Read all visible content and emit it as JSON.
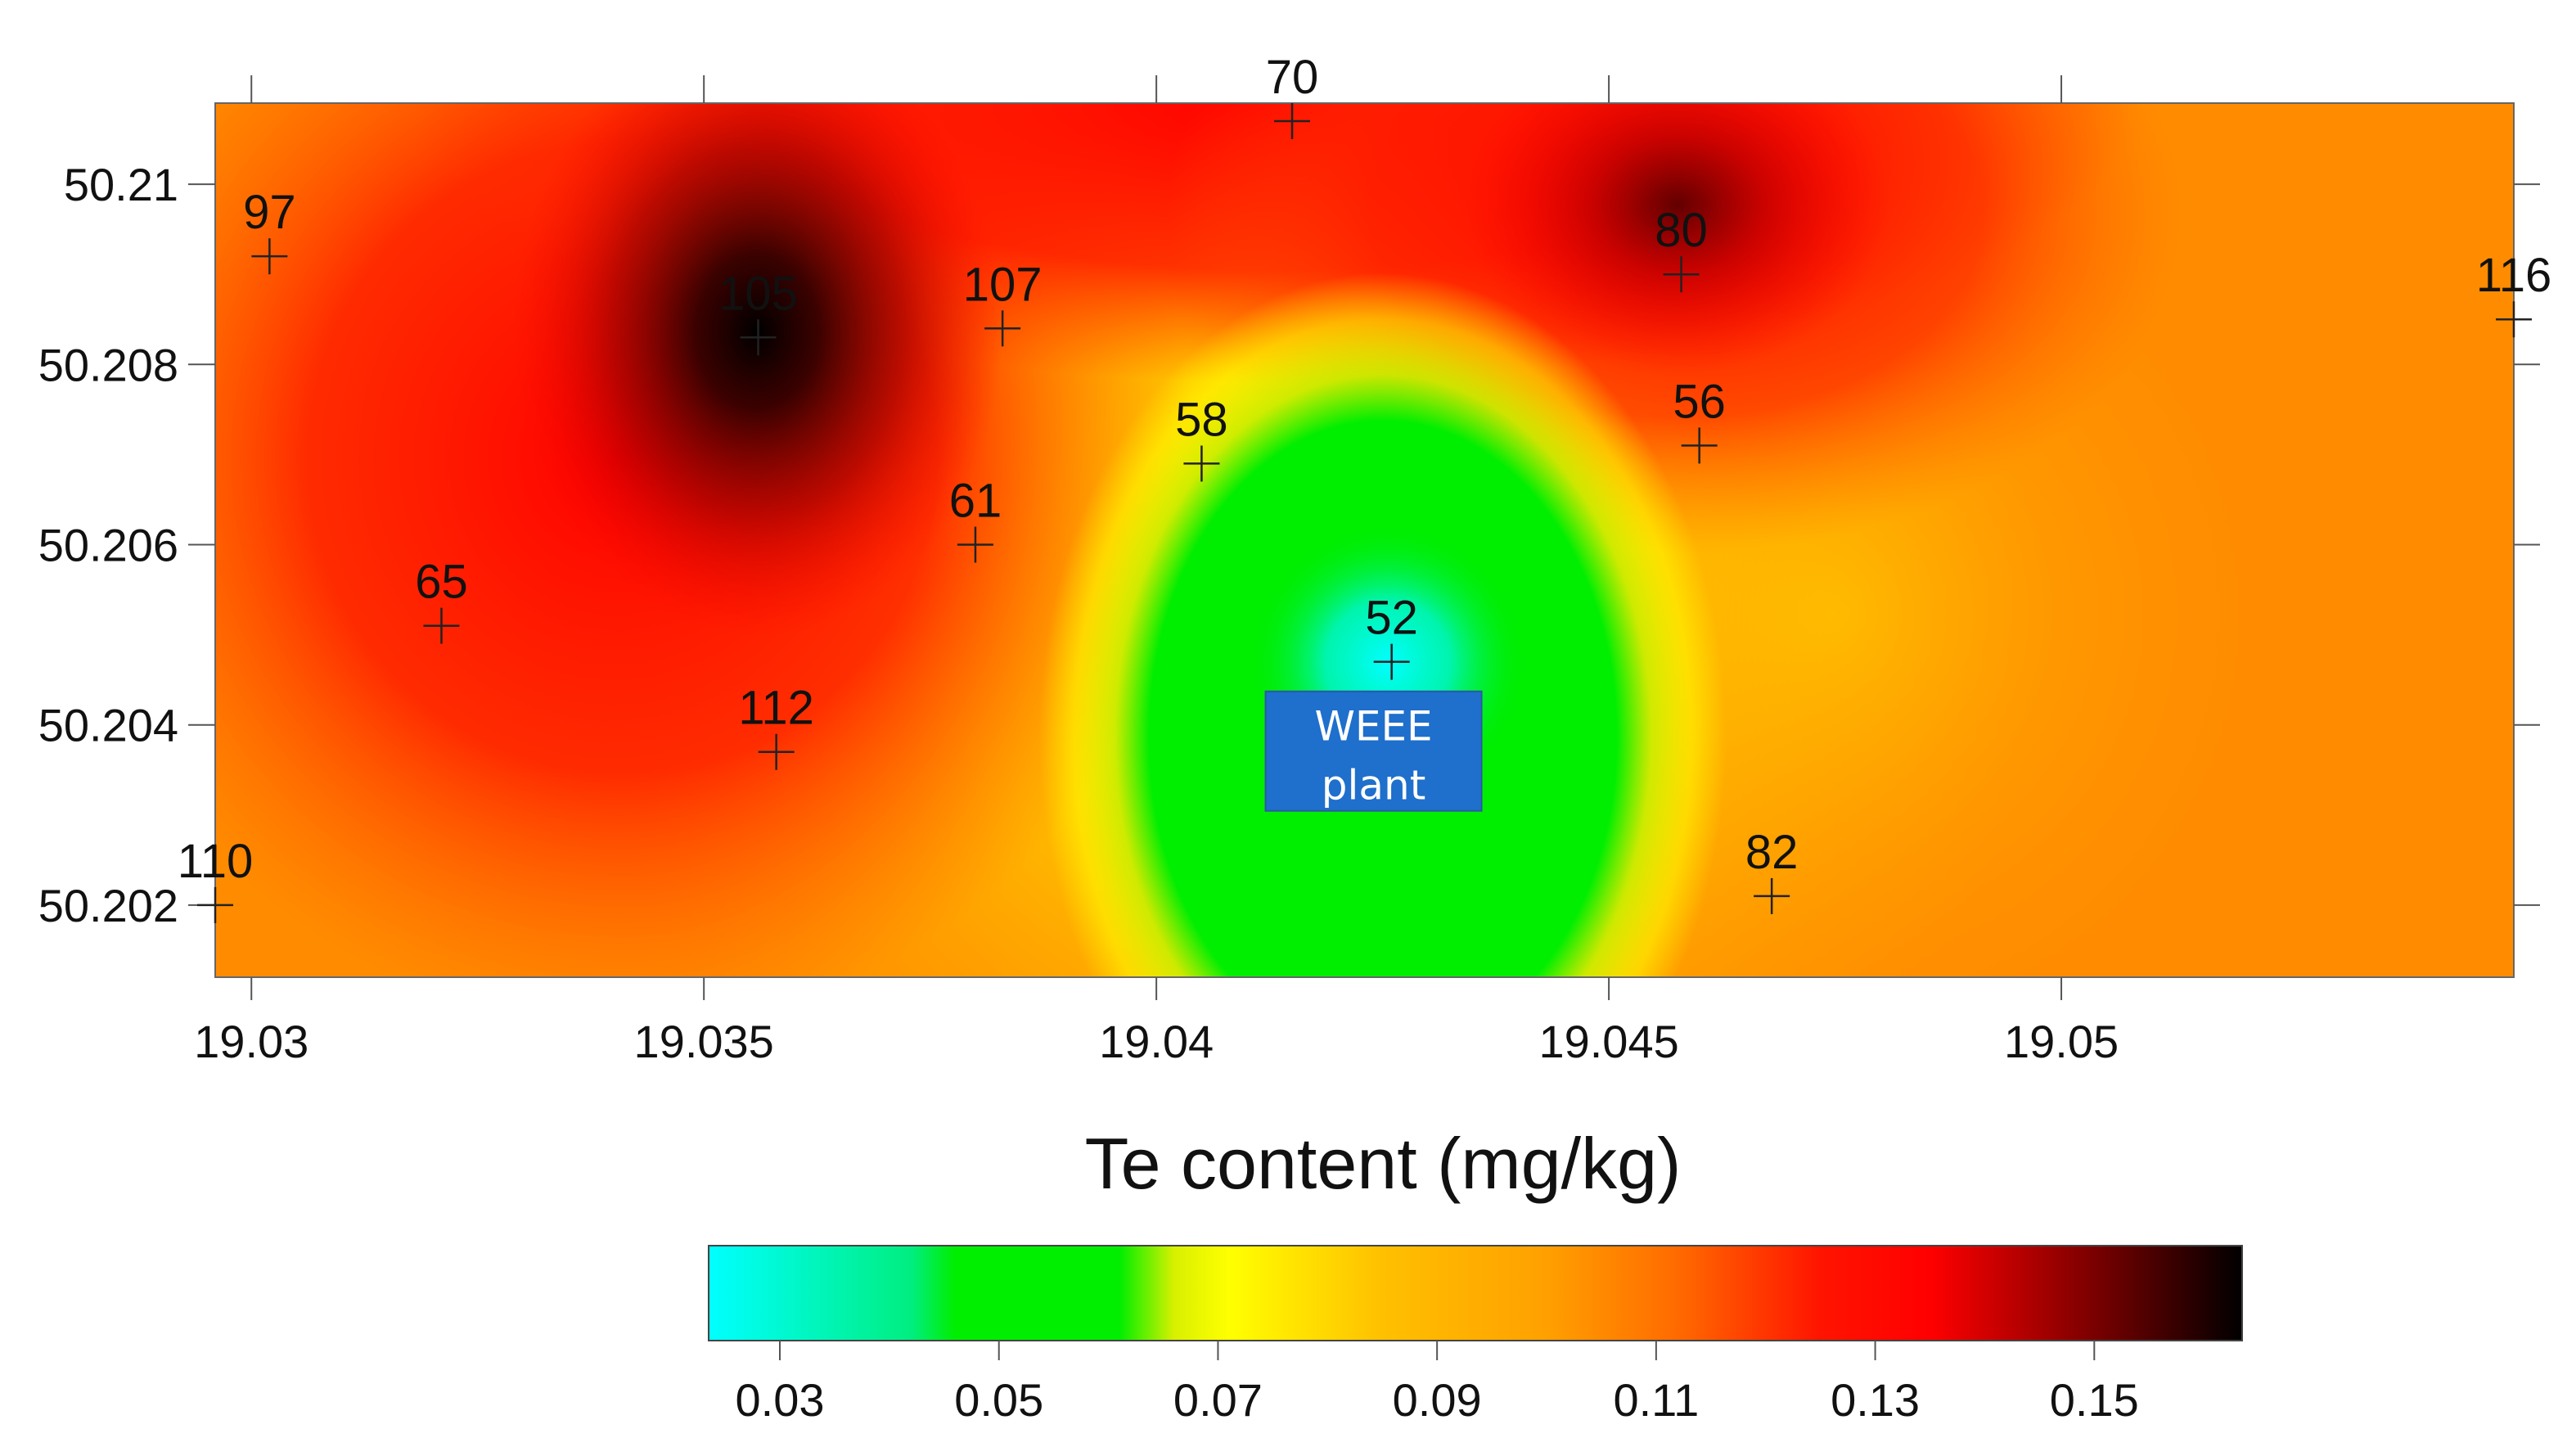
{
  "chart_data": {
    "type": "heatmap",
    "x_axis": {
      "ticks": [
        19.03,
        19.035,
        19.04,
        19.045,
        19.05
      ],
      "tick_labels": [
        "19.03",
        "19.035",
        "19.04",
        "19.045",
        "19.05"
      ],
      "range": [
        19.0296,
        19.055
      ]
    },
    "y_axis": {
      "ticks": [
        50.202,
        50.204,
        50.206,
        50.208,
        50.21
      ],
      "tick_labels": [
        "50.202",
        "50.204",
        "50.206",
        "50.208",
        "50.21"
      ],
      "range": [
        50.2012,
        50.2109
      ]
    },
    "sample_points": [
      {
        "label": "97",
        "x": 19.0302,
        "y": 50.2092
      },
      {
        "label": "70",
        "x": 19.0415,
        "y": 50.2107
      },
      {
        "label": "105",
        "x": 19.0356,
        "y": 50.2083
      },
      {
        "label": "107",
        "x": 19.0383,
        "y": 50.2084
      },
      {
        "label": "80",
        "x": 19.0458,
        "y": 50.209
      },
      {
        "label": "116",
        "x": 19.055,
        "y": 50.2085
      },
      {
        "label": "58",
        "x": 19.0405,
        "y": 50.2069
      },
      {
        "label": "56",
        "x": 19.046,
        "y": 50.2071
      },
      {
        "label": "61",
        "x": 19.038,
        "y": 50.206
      },
      {
        "label": "65",
        "x": 19.0321,
        "y": 50.2051
      },
      {
        "label": "52",
        "x": 19.0426,
        "y": 50.2047
      },
      {
        "label": "112",
        "x": 19.0358,
        "y": 50.2037
      },
      {
        "label": "82",
        "x": 19.0468,
        "y": 50.2021
      },
      {
        "label": "110",
        "x": 19.0296,
        "y": 50.202
      }
    ],
    "annotation": {
      "line1": "WEEE",
      "line2": "plant",
      "x": 19.0424,
      "y": 50.2037,
      "color": "#1f6fcc"
    },
    "colorbar": {
      "title": "Te content (mg/kg)",
      "ticks": [
        0.03,
        0.05,
        0.07,
        0.09,
        0.11,
        0.13,
        0.15
      ],
      "tick_labels": [
        "0.03",
        "0.05",
        "0.07",
        "0.09",
        "0.11",
        "0.13",
        "0.15"
      ],
      "range": [
        0.0235,
        0.1635
      ],
      "stops": [
        {
          "value": 0.0235,
          "color": "#00ffff"
        },
        {
          "value": 0.042,
          "color": "#00ee80"
        },
        {
          "value": 0.046,
          "color": "#00ee00"
        },
        {
          "value": 0.061,
          "color": "#00ee00"
        },
        {
          "value": 0.066,
          "color": "#d8f000"
        },
        {
          "value": 0.071,
          "color": "#ffff00"
        },
        {
          "value": 0.085,
          "color": "#ffc000"
        },
        {
          "value": 0.1,
          "color": "#ffa000"
        },
        {
          "value": 0.112,
          "color": "#ff6a00"
        },
        {
          "value": 0.125,
          "color": "#ff1400"
        },
        {
          "value": 0.135,
          "color": "#ff0000"
        },
        {
          "value": 0.15,
          "color": "#7a0000"
        },
        {
          "value": 0.1635,
          "color": "#000000"
        }
      ]
    }
  }
}
